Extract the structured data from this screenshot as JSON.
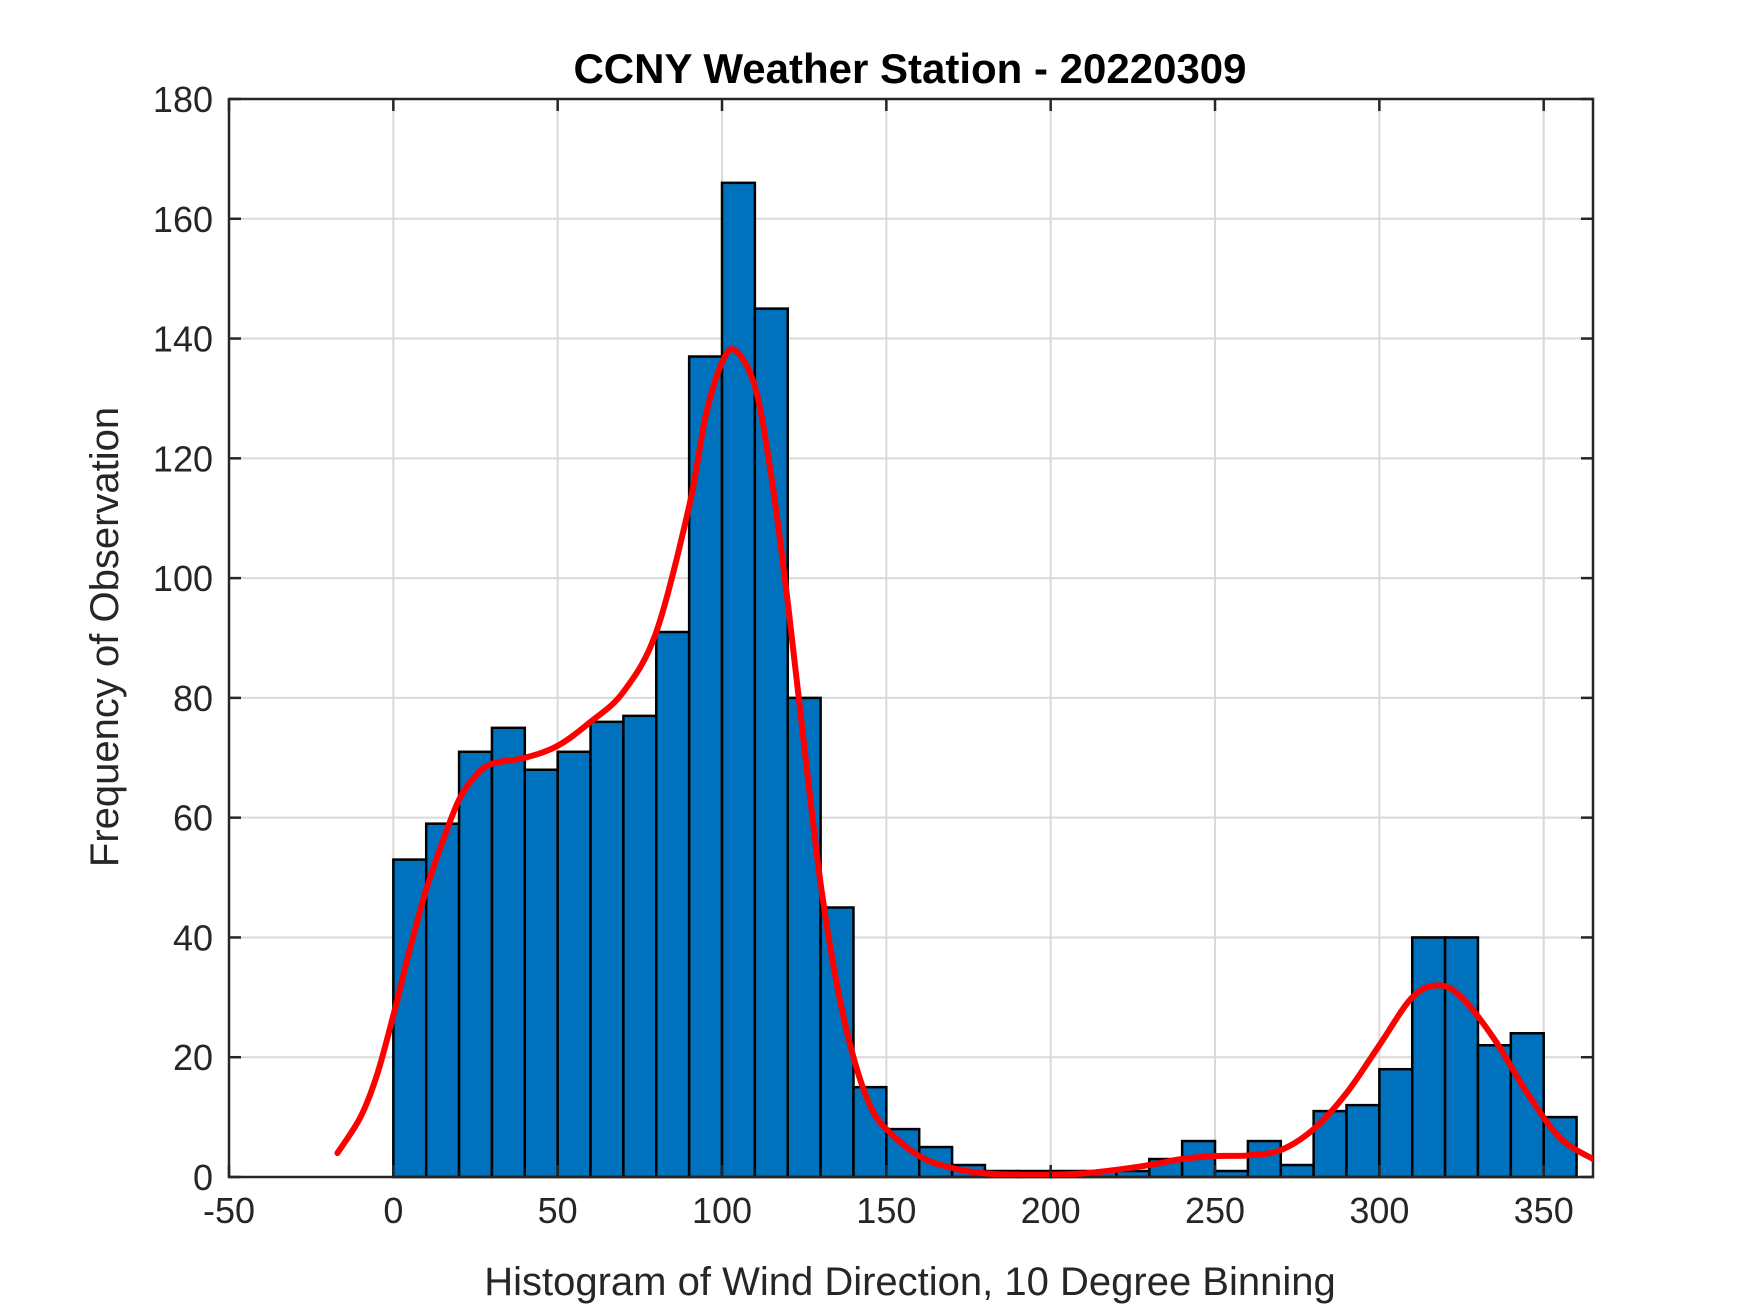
{
  "chart_data": {
    "type": "bar",
    "title": "CCNY Weather Station - 20220309",
    "xlabel": "Histogram of Wind Direction, 10 Degree Binning",
    "ylabel": "Frequency of Observation",
    "xlim": [
      -50,
      365
    ],
    "ylim": [
      0,
      180
    ],
    "xticks": [
      -50,
      0,
      50,
      100,
      150,
      200,
      250,
      300,
      350
    ],
    "yticks": [
      0,
      20,
      40,
      60,
      80,
      100,
      120,
      140,
      160,
      180
    ],
    "grid": true,
    "bin_width": 10,
    "bins": [
      {
        "start": 0,
        "count": 53
      },
      {
        "start": 10,
        "count": 59
      },
      {
        "start": 20,
        "count": 71
      },
      {
        "start": 30,
        "count": 75
      },
      {
        "start": 40,
        "count": 68
      },
      {
        "start": 50,
        "count": 71
      },
      {
        "start": 60,
        "count": 76
      },
      {
        "start": 70,
        "count": 77
      },
      {
        "start": 80,
        "count": 91
      },
      {
        "start": 90,
        "count": 137
      },
      {
        "start": 100,
        "count": 166
      },
      {
        "start": 110,
        "count": 145
      },
      {
        "start": 120,
        "count": 80
      },
      {
        "start": 130,
        "count": 45
      },
      {
        "start": 140,
        "count": 15
      },
      {
        "start": 150,
        "count": 8
      },
      {
        "start": 160,
        "count": 5
      },
      {
        "start": 170,
        "count": 2
      },
      {
        "start": 180,
        "count": 1
      },
      {
        "start": 190,
        "count": 1
      },
      {
        "start": 200,
        "count": 1
      },
      {
        "start": 210,
        "count": 1
      },
      {
        "start": 220,
        "count": 1
      },
      {
        "start": 230,
        "count": 3
      },
      {
        "start": 240,
        "count": 6
      },
      {
        "start": 250,
        "count": 1
      },
      {
        "start": 260,
        "count": 6
      },
      {
        "start": 270,
        "count": 2
      },
      {
        "start": 280,
        "count": 11
      },
      {
        "start": 290,
        "count": 12
      },
      {
        "start": 300,
        "count": 18
      },
      {
        "start": 310,
        "count": 40
      },
      {
        "start": 320,
        "count": 40
      },
      {
        "start": 330,
        "count": 22
      },
      {
        "start": 340,
        "count": 24
      },
      {
        "start": 350,
        "count": 10
      }
    ],
    "fit_curve": {
      "color": "#ff0000",
      "points": [
        [
          -17,
          4
        ],
        [
          -10,
          10
        ],
        [
          -5,
          17
        ],
        [
          0,
          27
        ],
        [
          5,
          38
        ],
        [
          10,
          48
        ],
        [
          15,
          56
        ],
        [
          20,
          63
        ],
        [
          25,
          67
        ],
        [
          30,
          69
        ],
        [
          40,
          70
        ],
        [
          50,
          72
        ],
        [
          60,
          76
        ],
        [
          70,
          81
        ],
        [
          80,
          91
        ],
        [
          90,
          112
        ],
        [
          95,
          127
        ],
        [
          100,
          136
        ],
        [
          104,
          138
        ],
        [
          110,
          132
        ],
        [
          115,
          117
        ],
        [
          120,
          96
        ],
        [
          125,
          72
        ],
        [
          130,
          49
        ],
        [
          135,
          32
        ],
        [
          140,
          20
        ],
        [
          145,
          12
        ],
        [
          150,
          8
        ],
        [
          160,
          3.5
        ],
        [
          170,
          1.5
        ],
        [
          180,
          0.6
        ],
        [
          190,
          0.4
        ],
        [
          200,
          0.4
        ],
        [
          210,
          0.6
        ],
        [
          220,
          1.2
        ],
        [
          230,
          2
        ],
        [
          240,
          3
        ],
        [
          250,
          3.5
        ],
        [
          260,
          3.6
        ],
        [
          270,
          4.5
        ],
        [
          280,
          8
        ],
        [
          290,
          14
        ],
        [
          300,
          22
        ],
        [
          310,
          30
        ],
        [
          318,
          32
        ],
        [
          325,
          30
        ],
        [
          335,
          23
        ],
        [
          345,
          14
        ],
        [
          355,
          6.5
        ],
        [
          365,
          3
        ]
      ]
    },
    "colors": {
      "bar_fill": "#0072bd",
      "bar_edge": "#000000",
      "grid": "#d9d9d9",
      "axis": "#262626"
    }
  }
}
